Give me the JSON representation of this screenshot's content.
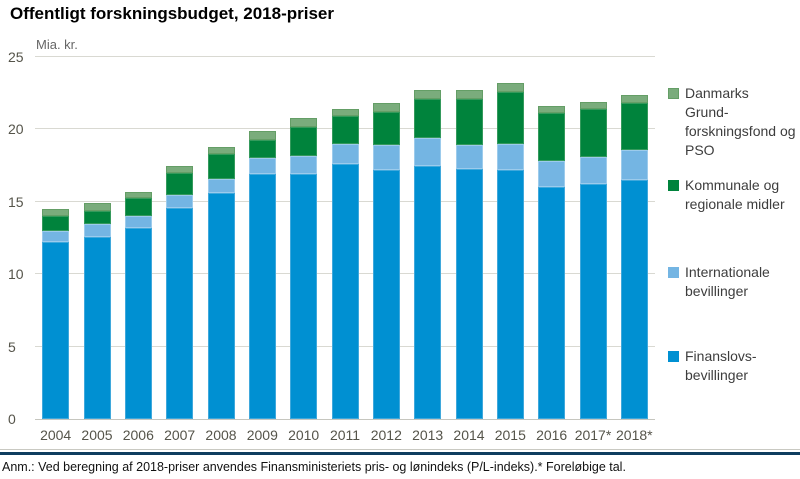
{
  "title": "Offentligt forskningsbudget, 2018-priser",
  "footnote": "Anm.: Ved beregning af 2018-priser anvendes Finansministeriets pris- og lønindeks (P/L-indeks).* Foreløbige tal.",
  "colors": {
    "finanslov_blue": "#0090D2",
    "internationale_lightblue": "#74B5E3",
    "kommunale_darkgreen": "#00833C",
    "grundforskningsfond_lightgreen": "#7AAC7C",
    "gridline": "#D9D9D2",
    "axis_text": "#55544A",
    "separator_navy": "#0F3D5F"
  },
  "chart_data": {
    "type": "bar",
    "stacked": true,
    "title": "Offentligt forskningsbudget, 2018-priser",
    "ylabel": "Mia. kr.",
    "xlabel": "",
    "ylim": [
      0,
      25
    ],
    "yticks": [
      0,
      5,
      10,
      15,
      20,
      25
    ],
    "grid": true,
    "legend_position": "right",
    "categories": [
      "2004",
      "2005",
      "2006",
      "2007",
      "2008",
      "2009",
      "2010",
      "2011",
      "2012",
      "2013",
      "2014",
      "2015",
      "2016",
      "2017*",
      "2018*"
    ],
    "series": [
      {
        "name": "Finanslovsbevillinger",
        "color": "#0090D2",
        "edge": "#3FA8DC",
        "values": [
          12.2,
          12.6,
          13.2,
          14.6,
          15.6,
          16.9,
          16.9,
          17.6,
          17.2,
          17.5,
          17.3,
          17.2,
          16.0,
          16.2,
          16.5
        ]
      },
      {
        "name": "Internationale bevillinger",
        "color": "#74B5E3",
        "edge": "#9CCBEC",
        "values": [
          0.8,
          0.9,
          0.8,
          0.9,
          1.0,
          1.1,
          1.3,
          1.4,
          1.7,
          1.9,
          1.6,
          1.8,
          1.8,
          1.9,
          2.1
        ]
      },
      {
        "name": "Kommunale og regionale midler",
        "color": "#00833C",
        "edge": "#349A5C",
        "values": [
          1.0,
          0.9,
          1.3,
          1.5,
          1.7,
          1.3,
          2.0,
          1.9,
          2.3,
          2.7,
          3.2,
          3.6,
          3.3,
          3.3,
          3.2
        ]
      },
      {
        "name": "Danmarks Grundforskningsfond og PSO",
        "color": "#7AAC7C",
        "edge": "#649E66",
        "values": [
          0.5,
          0.5,
          0.4,
          0.5,
          0.5,
          0.6,
          0.6,
          0.5,
          0.6,
          0.6,
          0.6,
          0.6,
          0.5,
          0.5,
          0.6
        ]
      }
    ]
  },
  "legend": {
    "items": [
      {
        "label": "Danmarks\nGrund-\nforskningsfond og\nPSO",
        "color": "#7AAC7C",
        "edge": "#649E66"
      },
      {
        "label": "Kommunale og\nregionale midler",
        "color": "#00833C",
        "edge": "#00833C"
      },
      {
        "label": "Internationale\nbevillinger",
        "color": "#74B5E3",
        "edge": "#74B5E3"
      },
      {
        "label": "Finanslovs-\nbevillinger",
        "color": "#0090D2",
        "edge": "#0090D2"
      }
    ]
  }
}
